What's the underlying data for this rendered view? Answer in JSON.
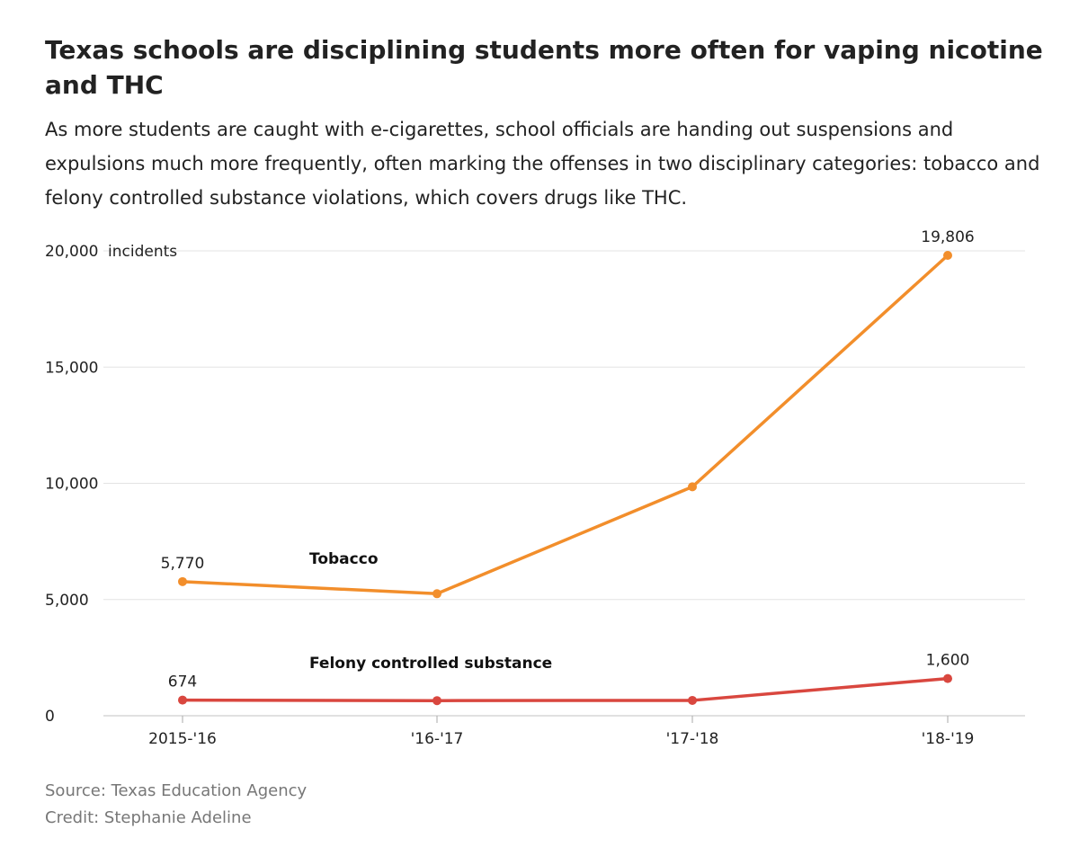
{
  "title": "Texas schools are disciplining students more often for vaping nicotine and THC",
  "subtitle": "As more students are caught with e-cigarettes, school officials are handing out suspensions and expulsions much more frequently, often marking the offenses in two disciplinary categories: tobacco and felony controlled substance violations, which covers drugs like THC.",
  "source": "Source: Texas Education Agency",
  "credit": "Credit: Stephanie Adeline",
  "chart_data": {
    "type": "line",
    "categories": [
      "2015-'16",
      "'16-'17",
      "'17-'18",
      "'18-'19"
    ],
    "ylabel": "incidents",
    "ylim": [
      0,
      20000
    ],
    "yticks": [
      0,
      5000,
      10000,
      15000,
      20000
    ],
    "ytick_labels": [
      "0",
      "5,000",
      "10,000",
      "15,000",
      "20,000"
    ],
    "grid": true,
    "series": [
      {
        "name": "Tobacco",
        "color": "#f28e2b",
        "values": [
          5770,
          5250,
          9850,
          19806
        ],
        "data_labels": [
          "5,770",
          null,
          null,
          "19,806"
        ]
      },
      {
        "name": "Felony controlled substance",
        "color": "#d9473f",
        "values": [
          674,
          650,
          660,
          1600
        ],
        "data_labels": [
          "674",
          null,
          null,
          "1,600"
        ]
      }
    ]
  }
}
